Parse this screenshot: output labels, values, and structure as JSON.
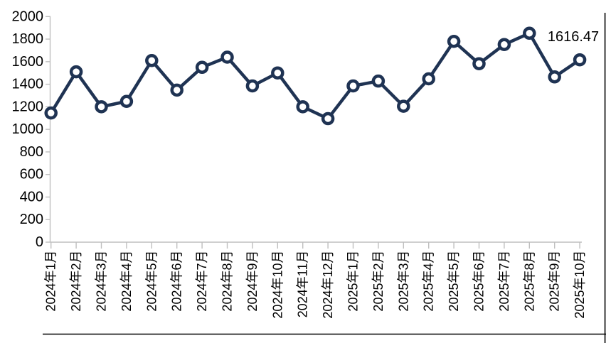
{
  "chart_data": {
    "type": "line",
    "title": "",
    "xlabel": "",
    "ylabel": "",
    "categories": [
      "2024年1月",
      "2024年2月",
      "2024年3月",
      "2024年4月",
      "2024年5月",
      "2024年6月",
      "2024年7月",
      "2024年8月",
      "2024年9月",
      "2024年10月",
      "2024年11月",
      "2024年12月",
      "2025年1月",
      "2025年2月",
      "2025年3月",
      "2025年4月",
      "2025年5月",
      "2025年6月",
      "2025年7月",
      "2025年8月",
      "2025年9月",
      "2025年10月"
    ],
    "series": [
      {
        "name": "",
        "values": [
          1145,
          1510,
          1200,
          1248,
          1610,
          1348,
          1550,
          1640,
          1385,
          1500,
          1200,
          1095,
          1385,
          1428,
          1205,
          1448,
          1780,
          1582,
          1752,
          1852,
          1465,
          1616.47
        ],
        "color": "#1f3353",
        "marker": "circle-open",
        "marker_fill": "#ffffff"
      }
    ],
    "last_point_label": "1616.47",
    "ylim": [
      0,
      2000
    ],
    "ytick_interval": 200,
    "grid": false,
    "legend_position": "none",
    "axis_color": "#bfbfbf",
    "text_color": "#000000",
    "background_color": "#ffffff"
  }
}
